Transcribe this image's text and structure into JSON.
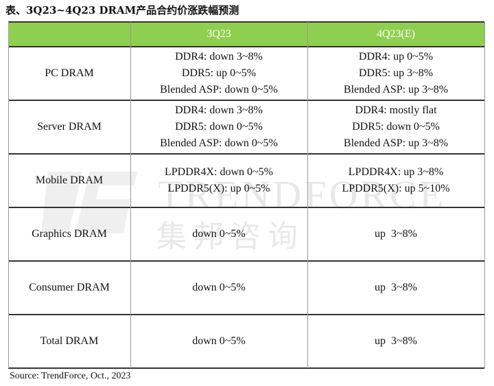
{
  "title": "表、3Q23~4Q23 DRAM产品合约价涨跌幅预测",
  "table": {
    "columns": [
      "3Q23",
      "4Q23(E)"
    ],
    "rows": [
      {
        "label": "PC DRAM",
        "cells": [
          [
            "DDR4: down 3~8%",
            "DDR5: up 0~5%",
            "Blended ASP: down 0~5%"
          ],
          [
            "DDR4: up 0~5%",
            "DDR5: up 3~8%",
            "Blended ASP: up 3~8%"
          ]
        ]
      },
      {
        "label": "Server DRAM",
        "cells": [
          [
            "DDR4: down 3~8%",
            "DDR5: down 0~5%",
            "Blended ASP: down 0~5%"
          ],
          [
            "DDR4: mostly flat",
            "DDR5: down 0~5%",
            "Blended ASP: up 3~8%"
          ]
        ]
      },
      {
        "label": "Mobile DRAM",
        "cells": [
          [
            "LPDDR4X: down 0~5%",
            "LPDDR5(X): up 0~5%"
          ],
          [
            "LPDDR4X: up 3~8%",
            "LPDDR5(X): up 5~10%"
          ]
        ]
      },
      {
        "label": "Graphics DRAM",
        "cells": [
          [
            "down 0~5%"
          ],
          [
            "up  3~8%"
          ]
        ]
      },
      {
        "label": "Consumer DRAM",
        "cells": [
          [
            "down 0~5%"
          ],
          [
            "up  3~8%"
          ]
        ]
      },
      {
        "label": "Total DRAM",
        "cells": [
          [
            "down 0~5%"
          ],
          [
            "up  3~8%"
          ]
        ]
      }
    ]
  },
  "watermark": {
    "brand": "TRENDFORCE",
    "brand_cn": "集邦咨询"
  },
  "source": "Source: TrendForce, Oct.,  2023"
}
